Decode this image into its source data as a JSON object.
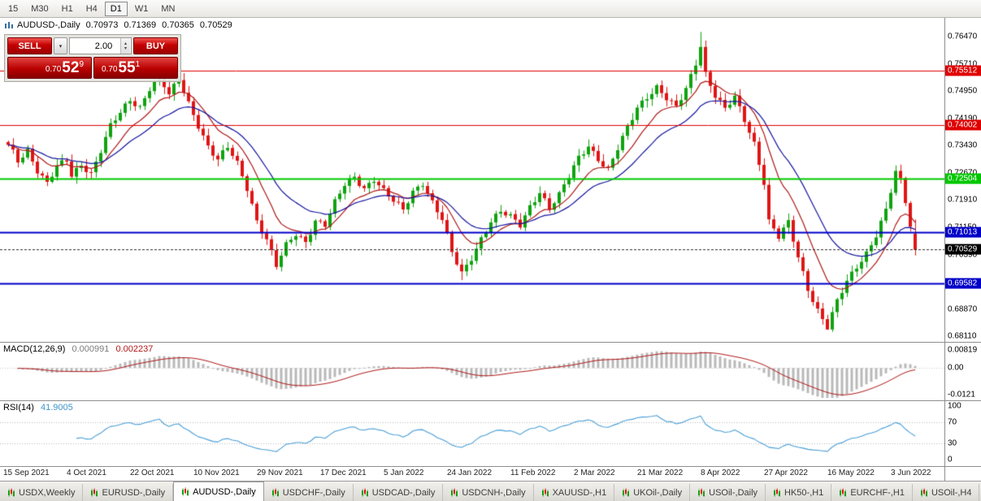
{
  "toolbar": {
    "timeframes": [
      {
        "label": "15",
        "active": false
      },
      {
        "label": "M30",
        "active": false
      },
      {
        "label": "H1",
        "active": false
      },
      {
        "label": "H4",
        "active": false
      },
      {
        "label": "D1",
        "active": true
      },
      {
        "label": "W1",
        "active": false
      },
      {
        "label": "MN",
        "active": false
      }
    ]
  },
  "chart": {
    "symbol_period": "AUDUSD-,Daily",
    "ohlc": {
      "open": "0.70973",
      "high": "0.71369",
      "low": "0.70365",
      "close": "0.70529"
    },
    "trade_panel": {
      "sell_label": "SELL",
      "buy_label": "BUY",
      "volume": "2.00",
      "sell_price": {
        "prefix": "0.70",
        "big": "52",
        "sup": "9"
      },
      "buy_price": {
        "prefix": "0.70",
        "big": "55",
        "sup": "1"
      }
    }
  },
  "chart_data": {
    "type": "candlestick",
    "symbol": "AUDUSD-",
    "timeframe": "Daily",
    "count": 187,
    "candle_colors": {
      "up": "#0fa30f",
      "down": "#e01515"
    },
    "anchors": [
      [
        0,
        0.7345
      ],
      [
        2,
        0.73
      ],
      [
        4,
        0.7332
      ],
      [
        6,
        0.7276
      ],
      [
        8,
        0.7238
      ],
      [
        10,
        0.7282
      ],
      [
        12,
        0.73
      ],
      [
        13,
        0.7258
      ],
      [
        15,
        0.7292
      ],
      [
        17,
        0.7268
      ],
      [
        19,
        0.733
      ],
      [
        21,
        0.7396
      ],
      [
        23,
        0.7432
      ],
      [
        25,
        0.747
      ],
      [
        27,
        0.7452
      ],
      [
        29,
        0.7506
      ],
      [
        31,
        0.7536
      ],
      [
        33,
        0.7482
      ],
      [
        35,
        0.7526
      ],
      [
        37,
        0.7462
      ],
      [
        39,
        0.7402
      ],
      [
        41,
        0.7342
      ],
      [
        43,
        0.7302
      ],
      [
        45,
        0.7336
      ],
      [
        47,
        0.7292
      ],
      [
        49,
        0.7226
      ],
      [
        51,
        0.7136
      ],
      [
        53,
        0.7082
      ],
      [
        55,
        0.7006
      ],
      [
        57,
        0.7062
      ],
      [
        59,
        0.7096
      ],
      [
        61,
        0.7076
      ],
      [
        63,
        0.7136
      ],
      [
        65,
        0.7122
      ],
      [
        67,
        0.7182
      ],
      [
        69,
        0.7232
      ],
      [
        71,
        0.7256
      ],
      [
        73,
        0.7226
      ],
      [
        75,
        0.7252
      ],
      [
        77,
        0.7216
      ],
      [
        79,
        0.7186
      ],
      [
        81,
        0.7162
      ],
      [
        83,
        0.7216
      ],
      [
        85,
        0.7242
      ],
      [
        87,
        0.7186
      ],
      [
        89,
        0.7136
      ],
      [
        91,
        0.7042
      ],
      [
        93,
        0.6986
      ],
      [
        95,
        0.7032
      ],
      [
        97,
        0.7086
      ],
      [
        99,
        0.7132
      ],
      [
        101,
        0.7156
      ],
      [
        103,
        0.7142
      ],
      [
        105,
        0.7122
      ],
      [
        107,
        0.7176
      ],
      [
        109,
        0.7216
      ],
      [
        111,
        0.7166
      ],
      [
        113,
        0.7202
      ],
      [
        115,
        0.7256
      ],
      [
        117,
        0.7312
      ],
      [
        119,
        0.7346
      ],
      [
        121,
        0.7306
      ],
      [
        123,
        0.7272
      ],
      [
        125,
        0.7332
      ],
      [
        127,
        0.7392
      ],
      [
        129,
        0.7452
      ],
      [
        131,
        0.7482
      ],
      [
        133,
        0.7506
      ],
      [
        135,
        0.7472
      ],
      [
        137,
        0.7446
      ],
      [
        139,
        0.7502
      ],
      [
        141,
        0.7576
      ],
      [
        142,
        0.7626
      ],
      [
        143,
        0.7546
      ],
      [
        145,
        0.7482
      ],
      [
        147,
        0.7442
      ],
      [
        149,
        0.7476
      ],
      [
        151,
        0.7416
      ],
      [
        153,
        0.7352
      ],
      [
        155,
        0.7242
      ],
      [
        156,
        0.7132
      ],
      [
        158,
        0.7086
      ],
      [
        160,
        0.7126
      ],
      [
        162,
        0.7032
      ],
      [
        164,
        0.6946
      ],
      [
        166,
        0.6886
      ],
      [
        168,
        0.6836
      ],
      [
        170,
        0.6906
      ],
      [
        172,
        0.6962
      ],
      [
        174,
        0.7006
      ],
      [
        176,
        0.7046
      ],
      [
        178,
        0.7096
      ],
      [
        180,
        0.7162
      ],
      [
        182,
        0.7266
      ],
      [
        183,
        0.7242
      ],
      [
        184,
        0.7186
      ],
      [
        185,
        0.712
      ],
      [
        186,
        0.70529
      ]
    ],
    "spikes": [
      {
        "i": 33,
        "high": 0.7556
      },
      {
        "i": 93,
        "low": 0.6968
      },
      {
        "i": 142,
        "high": 0.766
      },
      {
        "i": 168,
        "low": 0.6829
      }
    ],
    "last_candle": [
      0.70973,
      0.71369,
      0.70365,
      0.70529
    ],
    "moving_averages": [
      {
        "name": "fast-ma",
        "period": 10,
        "color": "#b01818"
      },
      {
        "name": "slow-ma",
        "period": 21,
        "color": "#1515a0"
      }
    ],
    "levels": [
      {
        "price": 0.75512,
        "label": "0.75512",
        "color": "#e00000",
        "width": 1
      },
      {
        "price": 0.74002,
        "label": "0.74002",
        "color": "#e00000",
        "width": 1
      },
      {
        "price": 0.72504,
        "label": "0.72504",
        "color": "#00c800",
        "width": 2
      },
      {
        "price": 0.71013,
        "label": "0.71013",
        "color": "#0000c8",
        "width": 2
      },
      {
        "price": 0.69582,
        "label": "0.69582",
        "color": "#0000c8",
        "width": 2
      }
    ],
    "current_price": {
      "value": 0.70529,
      "label": "0.70529",
      "color": "#000000"
    },
    "price_axis": {
      "top_value": 0.7647,
      "bottom_value": 0.6811,
      "labels": [
        "0.76470",
        "0.75710",
        "0.74950",
        "0.74190",
        "0.73430",
        "0.72670",
        "0.71910",
        "0.71150",
        "0.70390",
        "0.69630",
        "0.68870",
        "0.68110"
      ]
    },
    "x_axis": {
      "ticks": [
        {
          "i": 0,
          "label": "15 Sep 2021"
        },
        {
          "i": 13,
          "label": "4 Oct 2021"
        },
        {
          "i": 26,
          "label": "22 Oct 2021"
        },
        {
          "i": 39,
          "label": "10 Nov 2021"
        },
        {
          "i": 52,
          "label": "29 Nov 2021"
        },
        {
          "i": 65,
          "label": "17 Dec 2021"
        },
        {
          "i": 78,
          "label": "5 Jan 2022"
        },
        {
          "i": 91,
          "label": "24 Jan 2022"
        },
        {
          "i": 104,
          "label": "11 Feb 2022"
        },
        {
          "i": 117,
          "label": "2 Mar 2022"
        },
        {
          "i": 130,
          "label": "21 Mar 2022"
        },
        {
          "i": 143,
          "label": "8 Apr 2022"
        },
        {
          "i": 156,
          "label": "27 Apr 2022"
        },
        {
          "i": 169,
          "label": "16 May 2022"
        },
        {
          "i": 182,
          "label": "3 Jun 2022"
        }
      ]
    },
    "macd": {
      "name": "MACD(12,26,9)",
      "value_main": "0.000991",
      "value_signal": "0.002237",
      "fast": 12,
      "slow": 26,
      "signal": 9,
      "max": 0.00819,
      "min": -0.0121,
      "scale_labels": {
        "top": "0.00819",
        "zero": "0.00",
        "bottom": "-0.0121"
      },
      "colors": {
        "histogram": "#b9b9b9",
        "signal": "#b01818"
      }
    },
    "rsi": {
      "name": "RSI(14)",
      "value": "41.9005",
      "period": 14,
      "overbought": 70,
      "oversold": 30,
      "scale_labels": [
        "100",
        "70",
        "30",
        "0"
      ],
      "scale_values": [
        100,
        70,
        30,
        0
      ],
      "color": "#4a9fd8"
    }
  },
  "tabs": [
    {
      "label": "USDX,Weekly",
      "active": false
    },
    {
      "label": "EURUSD-,Daily",
      "active": false
    },
    {
      "label": "AUDUSD-,Daily",
      "active": true
    },
    {
      "label": "USDCHF-,Daily",
      "active": false
    },
    {
      "label": "USDCAD-,Daily",
      "active": false
    },
    {
      "label": "USDCNH-,Daily",
      "active": false
    },
    {
      "label": "XAUUSD-,H1",
      "active": false
    },
    {
      "label": "UKOil-,Daily",
      "active": false
    },
    {
      "label": "USOil-,Daily",
      "active": false
    },
    {
      "label": "HK50-,H1",
      "active": false
    },
    {
      "label": "EURCHF-,H1",
      "active": false
    },
    {
      "label": "USOil-,H4",
      "active": false
    }
  ]
}
